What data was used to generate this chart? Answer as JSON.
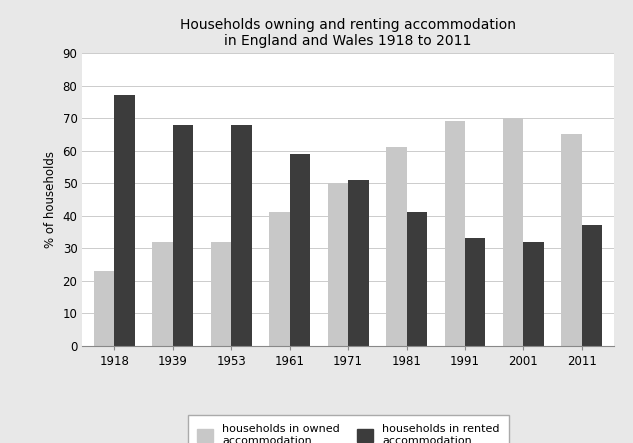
{
  "title": "Households owning and renting accommodation\nin England and Wales 1918 to 2011",
  "years": [
    "1918",
    "1939",
    "1953",
    "1961",
    "1971",
    "1981",
    "1991",
    "2001",
    "2011"
  ],
  "owned": [
    23,
    32,
    32,
    41,
    50,
    61,
    69,
    70,
    65
  ],
  "rented": [
    77,
    68,
    68,
    59,
    51,
    41,
    33,
    32,
    37
  ],
  "owned_color": "#c8c8c8",
  "rented_color": "#3c3c3c",
  "ylabel": "% of households",
  "ylim": [
    0,
    90
  ],
  "yticks": [
    0,
    10,
    20,
    30,
    40,
    50,
    60,
    70,
    80,
    90
  ],
  "legend_owned": "households in owned\naccommodation",
  "legend_rented": "households in rented\naccommodation",
  "page_background": "#e8e8e8",
  "plot_background": "#ffffff",
  "title_fontsize": 10,
  "axis_fontsize": 8.5,
  "legend_fontsize": 8
}
